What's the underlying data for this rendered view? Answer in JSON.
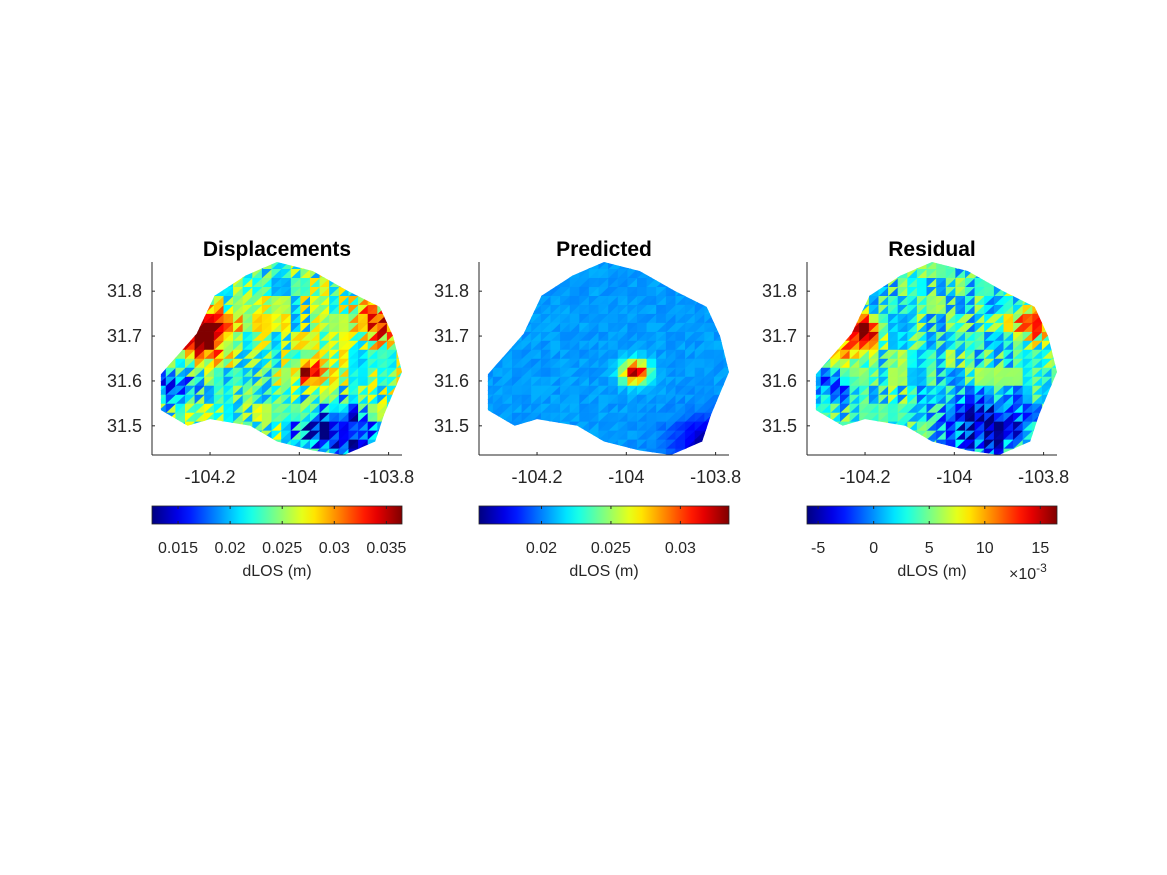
{
  "chart_data": [
    {
      "type": "heatmap",
      "title": "Displacements",
      "xticks": [
        -104.2,
        -104,
        -103.8
      ],
      "xtick_labels": [
        "-104.2",
        "-104",
        "-103.8"
      ],
      "yticks": [
        31.5,
        31.6,
        31.7,
        31.8
      ],
      "ytick_labels": [
        "31.5",
        "31.6",
        "31.7",
        "31.8"
      ],
      "xlim": [
        -104.33,
        -103.77
      ],
      "ylim": [
        31.435,
        31.865
      ],
      "clim": [
        0.0125,
        0.0365
      ],
      "colormap": "jet",
      "colorbar": {
        "ticks": [
          0.015,
          0.02,
          0.025,
          0.03,
          0.035
        ],
        "tick_labels": [
          "0.015",
          "0.02",
          "0.025",
          "0.03",
          "0.035"
        ],
        "label": "dLOS (m)",
        "exponent": ""
      },
      "peak": {
        "lon": -103.98,
        "lat": 31.62,
        "value": 0.036
      },
      "low": {
        "lon": -103.92,
        "lat": 31.49,
        "value": 0.013
      },
      "background_value": 0.024,
      "field_noise": 0.005,
      "hotspots": [
        {
          "lon": -104.2,
          "lat": 31.72,
          "value": 0.036
        },
        {
          "lon": -104.23,
          "lat": 31.68,
          "value": 0.033
        },
        {
          "lon": -103.82,
          "lat": 31.73,
          "value": 0.034
        },
        {
          "lon": -104.28,
          "lat": 31.59,
          "value": 0.016
        }
      ]
    },
    {
      "type": "heatmap",
      "title": "Predicted",
      "xticks": [
        -104.2,
        -104,
        -103.8
      ],
      "xtick_labels": [
        "-104.2",
        "-104",
        "-103.8"
      ],
      "yticks": [
        31.5,
        31.6,
        31.7,
        31.8
      ],
      "ytick_labels": [
        "31.5",
        "31.6",
        "31.7",
        "31.8"
      ],
      "xlim": [
        -104.33,
        -103.77
      ],
      "ylim": [
        31.435,
        31.865
      ],
      "clim": [
        0.0155,
        0.0335
      ],
      "colormap": "jet",
      "colorbar": {
        "ticks": [
          0.02,
          0.025,
          0.03
        ],
        "tick_labels": [
          "0.02",
          "0.025",
          "0.03"
        ],
        "label": "dLOS (m)",
        "exponent": ""
      },
      "peak": {
        "lon": -103.98,
        "lat": 31.62,
        "value": 0.0335
      },
      "low": {
        "lon": -103.8,
        "lat": 31.46,
        "value": 0.0157
      },
      "background_value": 0.0205,
      "field_noise": 0.0004,
      "hotspots": []
    },
    {
      "type": "heatmap",
      "title": "Residual",
      "xticks": [
        -104.2,
        -104,
        -103.8
      ],
      "xtick_labels": [
        "-104.2",
        "-104",
        "-103.8"
      ],
      "yticks": [
        31.5,
        31.6,
        31.7,
        31.8
      ],
      "ytick_labels": [
        "31.5",
        "31.6",
        "31.7",
        "31.8"
      ],
      "xlim": [
        -104.33,
        -103.77
      ],
      "ylim": [
        31.435,
        31.865
      ],
      "clim": [
        -6,
        16.5
      ],
      "colormap": "jet",
      "colorbar": {
        "ticks": [
          -5,
          0,
          5,
          10,
          15
        ],
        "tick_labels": [
          "-5",
          "0",
          "5",
          "10",
          "15"
        ],
        "label": "dLOS (m)",
        "exponent": "×10-3"
      },
      "peak": {
        "lon": -104.2,
        "lat": 31.72,
        "value": 16
      },
      "low": {
        "lon": -103.93,
        "lat": 31.5,
        "value": -5.5
      },
      "background_value": 3,
      "field_noise": 4,
      "hotspots": [
        {
          "lon": -103.82,
          "lat": 31.73,
          "value": 13
        },
        {
          "lon": -104.23,
          "lat": 31.68,
          "value": 11
        },
        {
          "lon": -104.28,
          "lat": 31.59,
          "value": -2
        }
      ]
    }
  ]
}
